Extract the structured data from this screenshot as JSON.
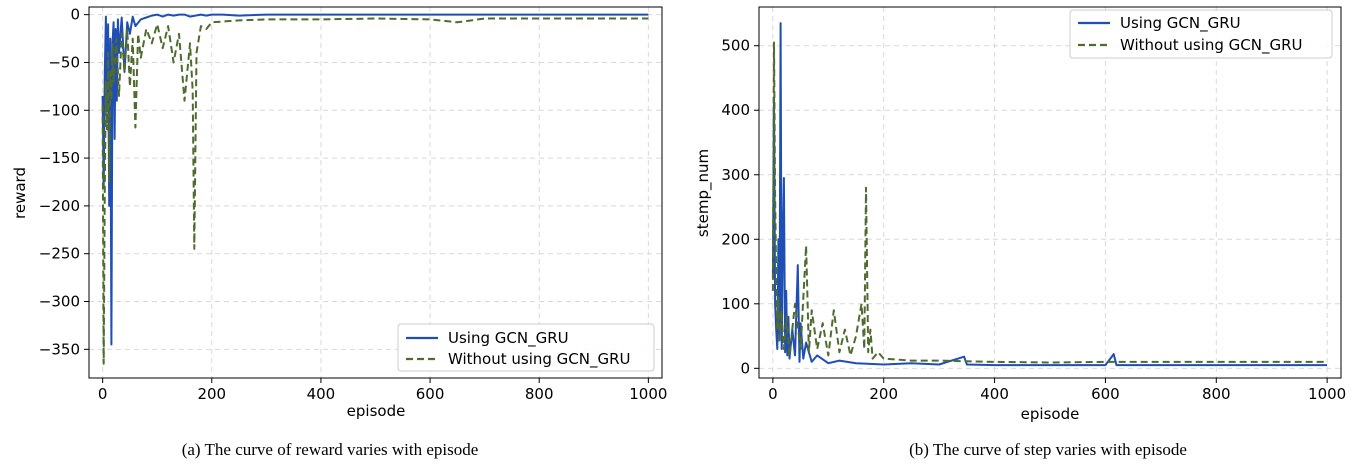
{
  "chart_data": [
    {
      "type": "line",
      "title": "",
      "caption": "(a)  The curve of reward varies with episode",
      "xlabel": "episode",
      "ylabel": "reward",
      "xlim": [
        -25,
        1025
      ],
      "ylim": [
        -380,
        8
      ],
      "xticks": [
        0,
        200,
        400,
        600,
        800,
        1000
      ],
      "yticks": [
        0,
        -50,
        -100,
        -150,
        -200,
        -250,
        -300,
        -350
      ],
      "grid": true,
      "legend_position": "lower-right",
      "series": [
        {
          "name": "Using GCN_GRU",
          "color": "#1f4fb5",
          "style": "solid",
          "x": [
            0,
            2,
            4,
            6,
            8,
            10,
            12,
            14,
            16,
            18,
            20,
            22,
            24,
            26,
            28,
            30,
            35,
            40,
            45,
            50,
            55,
            60,
            70,
            80,
            90,
            100,
            110,
            120,
            130,
            140,
            150,
            160,
            170,
            180,
            190,
            200,
            220,
            250,
            300,
            350,
            400,
            500,
            600,
            700,
            800,
            900,
            1000
          ],
          "y": [
            -85,
            -180,
            -60,
            -2,
            -100,
            -10,
            -200,
            -25,
            -345,
            -30,
            -8,
            -130,
            -15,
            -90,
            -5,
            -40,
            -3,
            -60,
            -8,
            -20,
            -2,
            -12,
            -5,
            -3,
            -1,
            0,
            -2,
            0,
            -1,
            0,
            0,
            -2,
            -1,
            0,
            -1,
            0,
            0,
            -1,
            0,
            0,
            0,
            0,
            0,
            0,
            0,
            0,
            0
          ]
        },
        {
          "name": "Without using GCN_GRU",
          "color": "#4f6b2f",
          "style": "dashed",
          "x": [
            0,
            2,
            4,
            6,
            8,
            10,
            12,
            14,
            16,
            18,
            20,
            22,
            25,
            30,
            35,
            40,
            45,
            50,
            55,
            60,
            65,
            70,
            80,
            90,
            100,
            110,
            120,
            130,
            140,
            150,
            160,
            165,
            168,
            172,
            180,
            190,
            200,
            250,
            300,
            400,
            500,
            600,
            650,
            700,
            800,
            900,
            1000
          ],
          "y": [
            -95,
            -365,
            -180,
            -70,
            -120,
            -40,
            -175,
            -60,
            -90,
            -30,
            -70,
            -55,
            -25,
            -85,
            -20,
            -60,
            -15,
            -75,
            -25,
            -118,
            -20,
            -45,
            -15,
            -30,
            -10,
            -35,
            -12,
            -50,
            -20,
            -90,
            -30,
            -80,
            -245,
            -40,
            -12,
            -15,
            -8,
            -6,
            -5,
            -5,
            -4,
            -5,
            -8,
            -4,
            -4,
            -4,
            -4
          ]
        }
      ]
    },
    {
      "type": "line",
      "title": "",
      "caption": "(b)  The curve of step varies with episode",
      "xlabel": "episode",
      "ylabel": "stemp_num",
      "xlim": [
        -25,
        1025
      ],
      "ylim": [
        -15,
        560
      ],
      "xticks": [
        0,
        200,
        400,
        600,
        800,
        1000
      ],
      "yticks": [
        0,
        100,
        200,
        300,
        400,
        500
      ],
      "grid": true,
      "legend_position": "top-right",
      "series": [
        {
          "name": "Using GCN_GRU",
          "color": "#1f4fb5",
          "style": "solid",
          "x": [
            0,
            2,
            4,
            6,
            8,
            10,
            12,
            14,
            16,
            18,
            20,
            22,
            24,
            26,
            28,
            30,
            35,
            40,
            45,
            48,
            50,
            55,
            60,
            70,
            80,
            100,
            120,
            150,
            200,
            250,
            300,
            345,
            350,
            400,
            500,
            600,
            615,
            620,
            700,
            800,
            900,
            1000
          ],
          "y": [
            140,
            420,
            100,
            60,
            30,
            200,
            50,
            535,
            30,
            200,
            295,
            25,
            120,
            20,
            80,
            15,
            60,
            20,
            160,
            10,
            70,
            15,
            40,
            10,
            20,
            8,
            12,
            8,
            6,
            8,
            6,
            18,
            6,
            5,
            5,
            5,
            22,
            5,
            5,
            5,
            5,
            5
          ]
        },
        {
          "name": "Without using GCN_GRU",
          "color": "#4f6b2f",
          "style": "dashed",
          "x": [
            0,
            2,
            4,
            6,
            8,
            10,
            12,
            15,
            20,
            25,
            30,
            40,
            50,
            60,
            65,
            70,
            80,
            90,
            100,
            110,
            120,
            130,
            140,
            150,
            160,
            165,
            168,
            172,
            176,
            180,
            190,
            200,
            250,
            300,
            400,
            500,
            600,
            700,
            800,
            900,
            1000
          ],
          "y": [
            120,
            505,
            270,
            140,
            60,
            110,
            40,
            90,
            30,
            80,
            20,
            100,
            30,
            190,
            25,
            90,
            30,
            70,
            20,
            90,
            25,
            60,
            20,
            50,
            100,
            30,
            280,
            25,
            60,
            15,
            25,
            15,
            12,
            12,
            10,
            9,
            10,
            10,
            10,
            10,
            10
          ]
        }
      ]
    }
  ]
}
